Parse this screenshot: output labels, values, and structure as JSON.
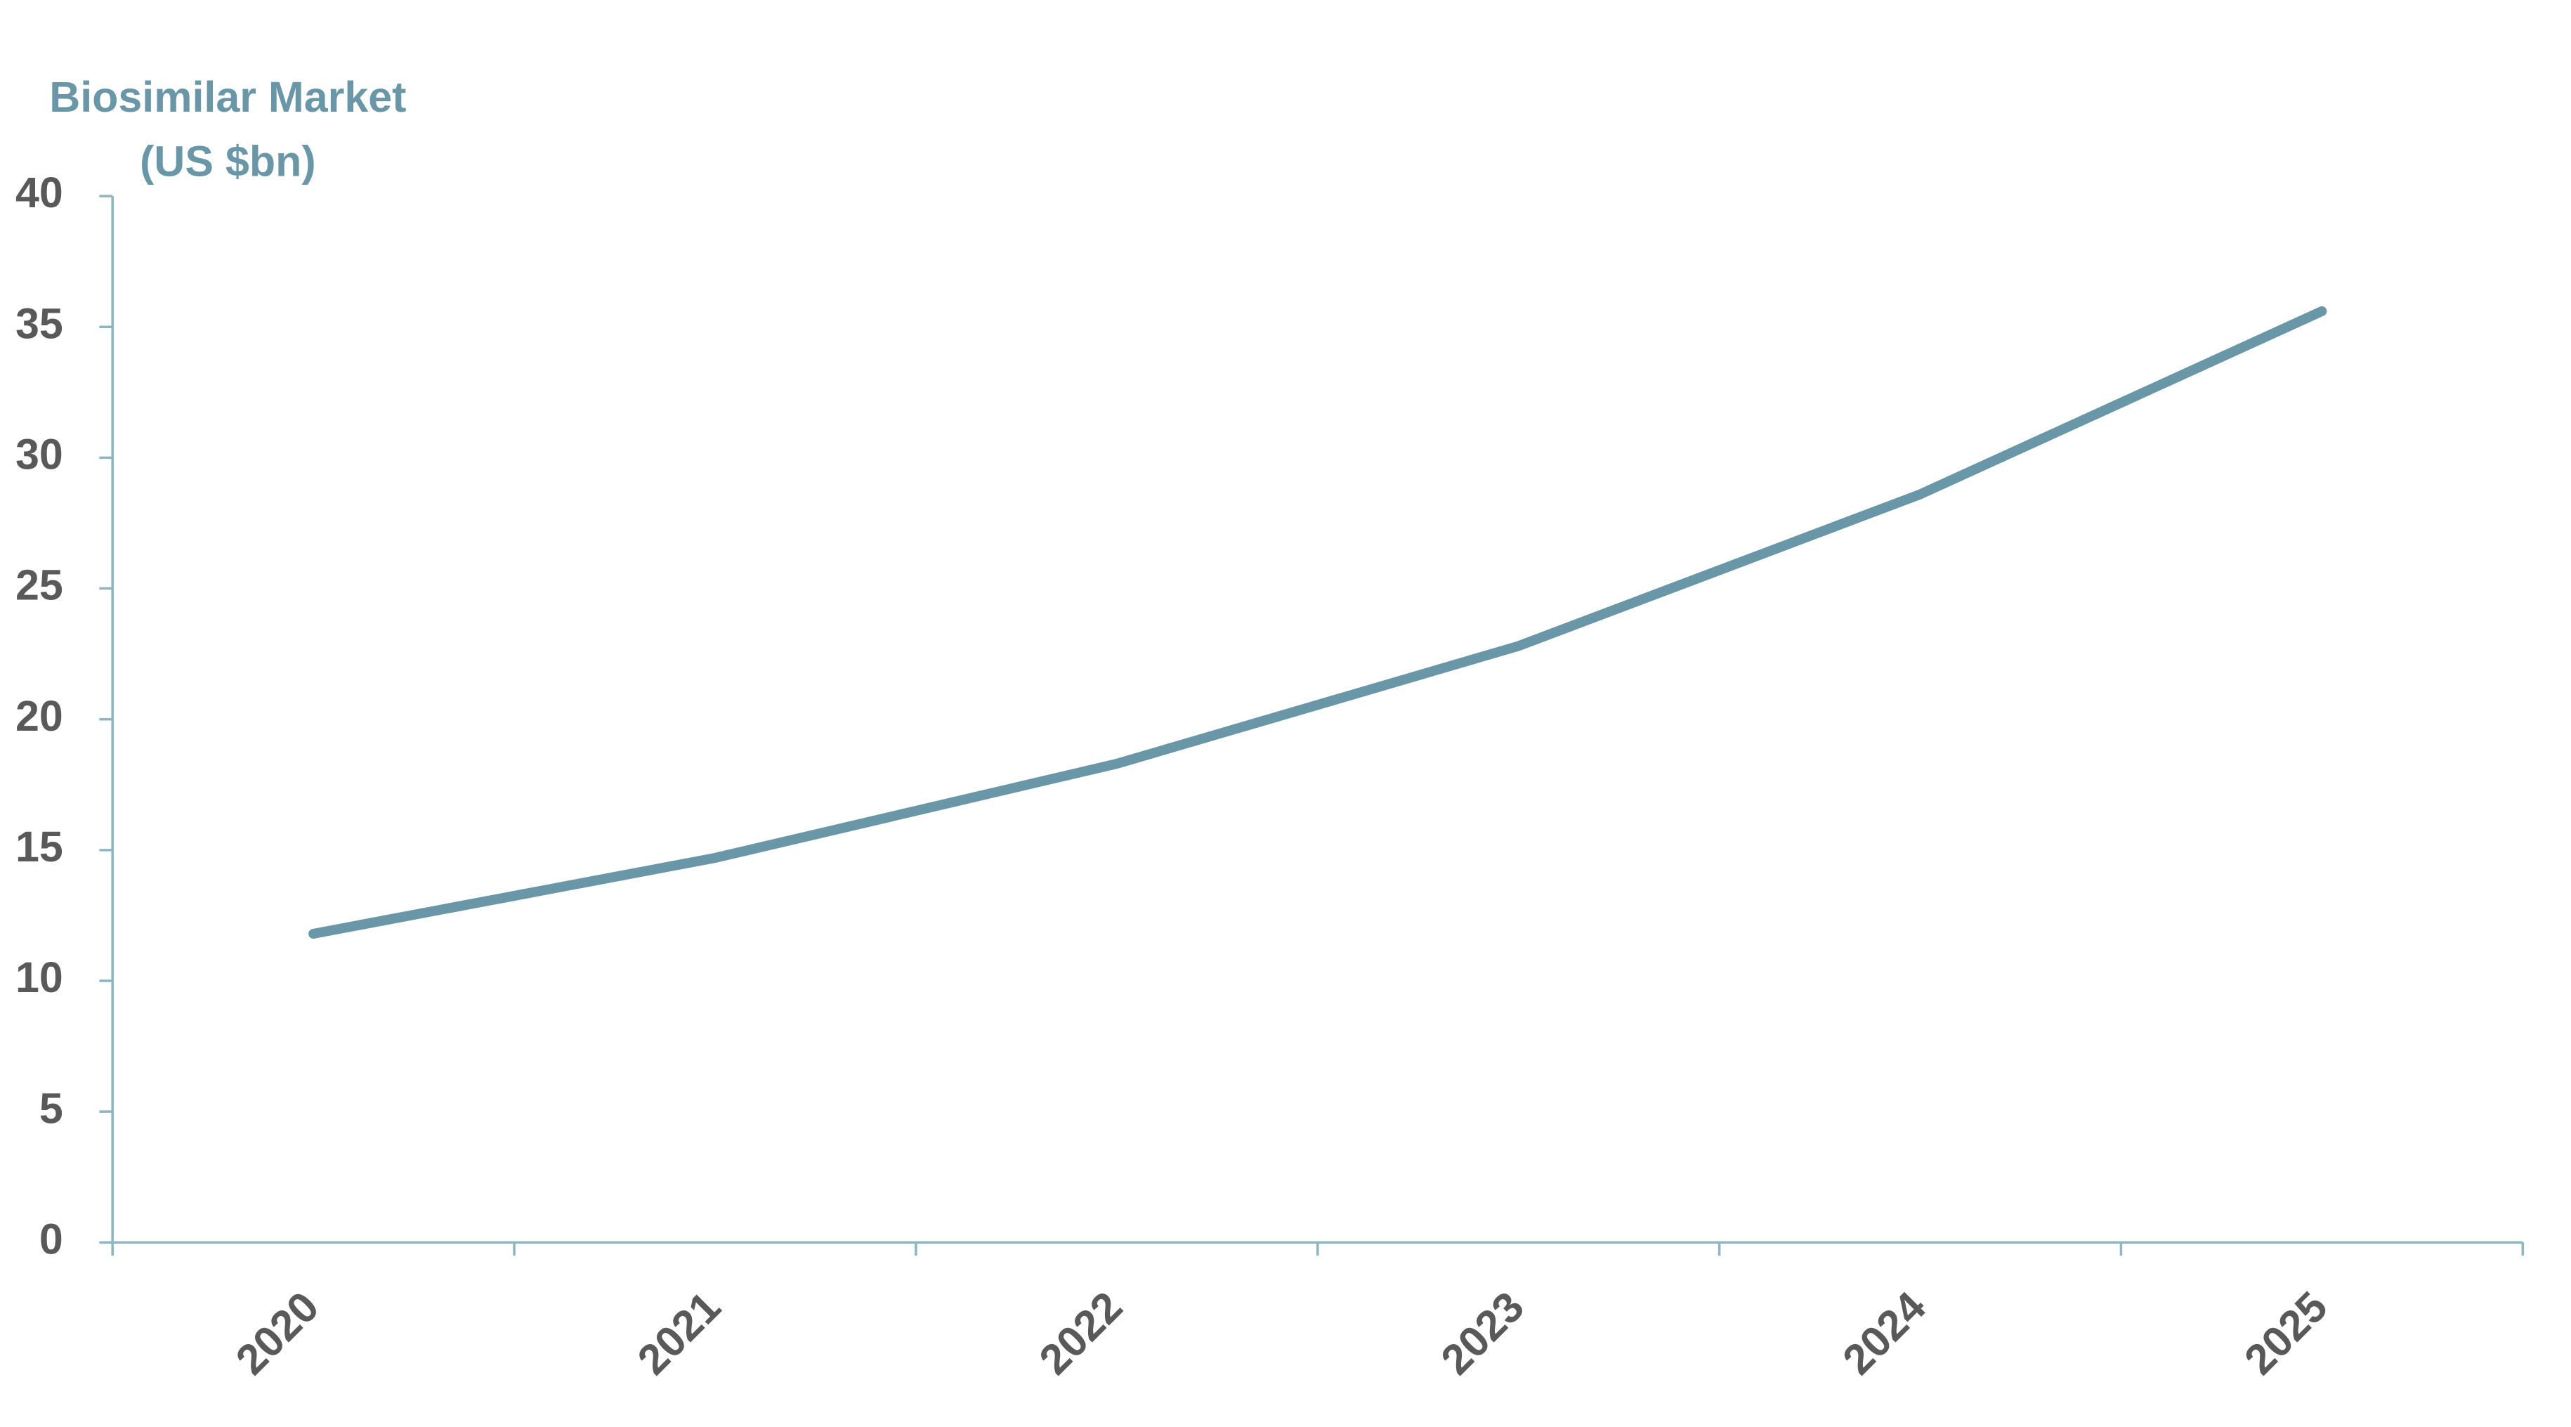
{
  "chart_data": {
    "type": "line",
    "title": "Biosimilar Market",
    "subtitle": "(US $bn)",
    "categories": [
      "2020",
      "2021",
      "2022",
      "2023",
      "2024",
      "2025"
    ],
    "series": [
      {
        "name": "Biosimilar Market",
        "color": "#6a97a8",
        "values": [
          11.8,
          14.7,
          18.3,
          22.8,
          28.6,
          35.6
        ]
      }
    ],
    "ylim": [
      0,
      40
    ],
    "yticks": [
      0,
      5,
      10,
      15,
      20,
      25,
      30,
      35,
      40
    ],
    "grid": false
  }
}
